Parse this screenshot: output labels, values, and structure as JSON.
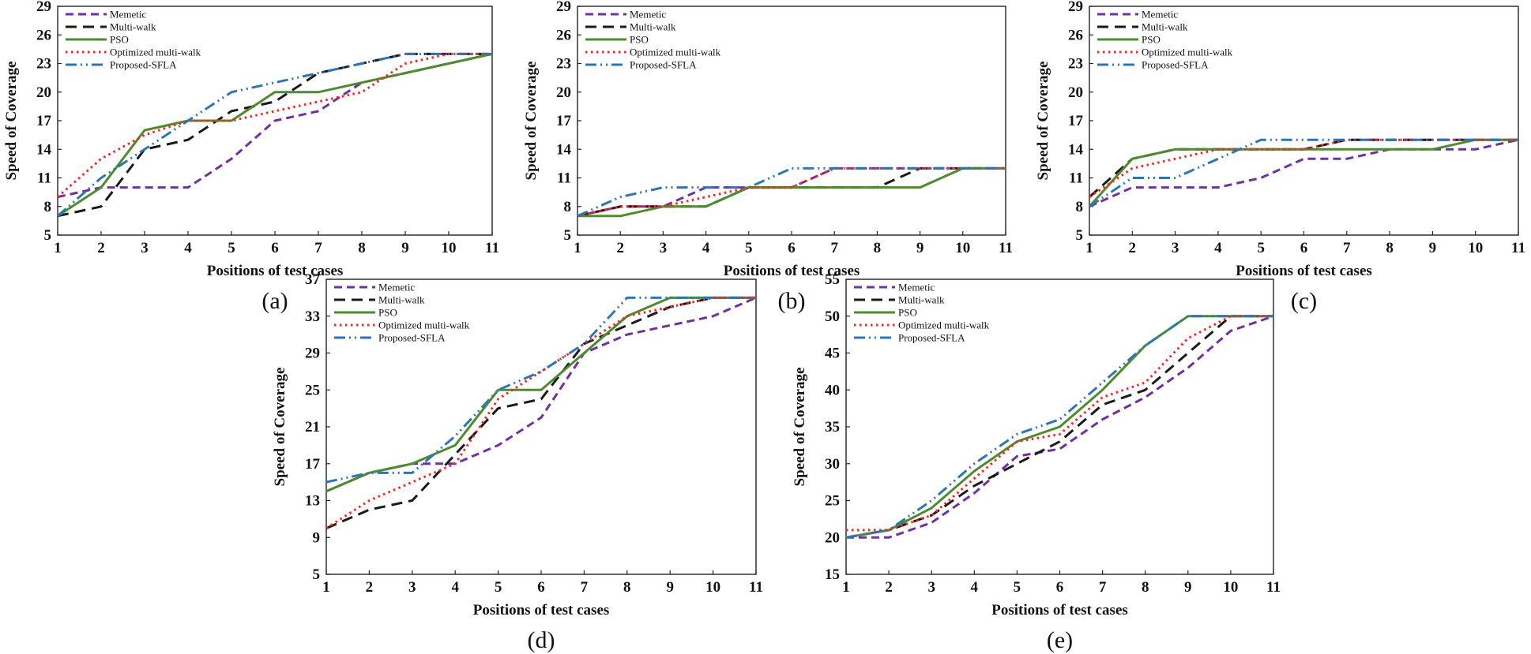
{
  "figure": {
    "series_styles": [
      {
        "name": "Memetic",
        "color": "#7030a0",
        "dash": "dashed"
      },
      {
        "name": "Multi-walk",
        "color": "#1a1a1a",
        "dash": "long-dash"
      },
      {
        "name": "PSO",
        "color": "#4e8b2c",
        "dash": "solid"
      },
      {
        "name": "Optimized multi-walk",
        "color": "#ff2020",
        "dash": "dotted"
      },
      {
        "name": "Proposed-SFLA",
        "color": "#2e75b6",
        "dash": "dash-dot-dot"
      }
    ]
  },
  "chart_data": [
    {
      "panel": "(a)",
      "type": "line",
      "xlabel": "Positions of test cases",
      "ylabel": "Speed of Coverage",
      "x": [
        1,
        2,
        3,
        4,
        5,
        6,
        7,
        8,
        9,
        10,
        11
      ],
      "xticks": [
        "1",
        "2",
        "3",
        "4",
        "5",
        "6",
        "7",
        "8",
        "9",
        "10",
        "11"
      ],
      "yticks": [
        "5",
        "8",
        "11",
        "14",
        "17",
        "20",
        "23",
        "26",
        "29"
      ],
      "ylim": [
        5,
        29
      ],
      "legend_position": "top-left",
      "series": [
        {
          "name": "Memetic",
          "values": [
            9,
            10,
            10,
            10,
            13,
            17,
            18,
            21,
            22,
            23,
            24
          ]
        },
        {
          "name": "Multi-walk",
          "values": [
            7,
            8,
            14,
            15,
            18,
            19,
            22,
            23,
            24,
            24,
            24
          ]
        },
        {
          "name": "PSO",
          "values": [
            7,
            10,
            16,
            17,
            17,
            20,
            20,
            21,
            22,
            23,
            24
          ]
        },
        {
          "name": "Optimized multi-walk",
          "values": [
            9,
            13,
            15.5,
            17,
            17,
            18,
            19,
            20,
            23,
            24,
            24
          ]
        },
        {
          "name": "Proposed-SFLA",
          "values": [
            7,
            11,
            14,
            17,
            20,
            21,
            22,
            23,
            24,
            24,
            24
          ]
        }
      ]
    },
    {
      "panel": "(b)",
      "type": "line",
      "xlabel": "Positions of test cases",
      "ylabel": "Speed of Coverage",
      "x": [
        1,
        2,
        3,
        4,
        5,
        6,
        7,
        8,
        9,
        10,
        11
      ],
      "xticks": [
        "1",
        "2",
        "3",
        "4",
        "5",
        "6",
        "7",
        "8",
        "9",
        "10",
        "11"
      ],
      "yticks": [
        "5",
        "8",
        "11",
        "14",
        "17",
        "20",
        "23",
        "26",
        "29"
      ],
      "ylim": [
        5,
        29
      ],
      "legend_position": "top-left",
      "series": [
        {
          "name": "Memetic",
          "values": [
            7,
            8,
            8,
            10,
            10,
            10,
            12,
            12,
            12,
            12,
            12
          ]
        },
        {
          "name": "Multi-walk",
          "values": [
            7,
            8,
            8,
            8,
            10,
            10,
            10,
            10,
            12,
            12,
            12
          ]
        },
        {
          "name": "PSO",
          "values": [
            7,
            7,
            8,
            8,
            10,
            10,
            10,
            10,
            10,
            12,
            12
          ]
        },
        {
          "name": "Optimized multi-walk",
          "values": [
            7,
            8,
            8,
            9,
            10,
            10,
            12,
            12,
            12,
            12,
            12
          ]
        },
        {
          "name": "Proposed-SFLA",
          "values": [
            7,
            9,
            10,
            10,
            10,
            12,
            12,
            12,
            12,
            12,
            12
          ]
        }
      ]
    },
    {
      "panel": "(c)",
      "type": "line",
      "xlabel": "Positions of test cases",
      "ylabel": "Speed of Coverage",
      "x": [
        1,
        2,
        3,
        4,
        5,
        6,
        7,
        8,
        9,
        10,
        11
      ],
      "xticks": [
        "1",
        "2",
        "3",
        "4",
        "5",
        "6",
        "7",
        "8",
        "9",
        "10",
        "11"
      ],
      "yticks": [
        "5",
        "8",
        "11",
        "14",
        "17",
        "20",
        "23",
        "26",
        "29"
      ],
      "ylim": [
        5,
        29
      ],
      "legend_position": "top-left",
      "series": [
        {
          "name": "Memetic",
          "values": [
            8,
            10,
            10,
            10,
            11,
            13,
            13,
            14,
            14,
            14,
            15
          ]
        },
        {
          "name": "Multi-walk",
          "values": [
            9,
            13,
            14,
            14,
            14,
            14,
            15,
            15,
            15,
            15,
            15
          ]
        },
        {
          "name": "PSO",
          "values": [
            8,
            13,
            14,
            14,
            14,
            14,
            14,
            14,
            14,
            15,
            15
          ]
        },
        {
          "name": "Optimized multi-walk",
          "values": [
            9,
            12,
            13,
            14,
            14,
            14,
            15,
            15,
            15,
            15,
            15
          ]
        },
        {
          "name": "Proposed-SFLA",
          "values": [
            8,
            11,
            11,
            13,
            15,
            15,
            15,
            15,
            15,
            15,
            15
          ]
        }
      ]
    },
    {
      "panel": "(d)",
      "type": "line",
      "xlabel": "Positions of test cases",
      "ylabel": "Speed of Coverage",
      "x": [
        1,
        2,
        3,
        4,
        5,
        6,
        7,
        8,
        9,
        10,
        11
      ],
      "xticks": [
        "1",
        "2",
        "3",
        "4",
        "5",
        "6",
        "7",
        "8",
        "9",
        "10",
        "11"
      ],
      "yticks": [
        "5",
        "9",
        "13",
        "17",
        "21",
        "25",
        "29",
        "33",
        "37"
      ],
      "ylim": [
        5,
        37
      ],
      "legend_position": "top-left",
      "series": [
        {
          "name": "Memetic",
          "values": [
            14,
            16,
            17,
            17,
            19,
            22,
            29,
            31,
            32,
            33,
            35
          ]
        },
        {
          "name": "Multi-walk",
          "values": [
            10,
            12,
            13,
            18,
            23,
            24,
            30,
            32,
            34,
            35,
            35
          ]
        },
        {
          "name": "PSO",
          "values": [
            14,
            16,
            17,
            19,
            25,
            25,
            29,
            33,
            35,
            35,
            35
          ]
        },
        {
          "name": "Optimized multi-walk",
          "values": [
            10,
            13,
            15,
            17,
            24,
            27,
            30,
            33,
            34,
            35,
            35
          ]
        },
        {
          "name": "Proposed-SFLA",
          "values": [
            15,
            16,
            16,
            20,
            25,
            27,
            30,
            35,
            35,
            35,
            35
          ]
        }
      ]
    },
    {
      "panel": "(e)",
      "type": "line",
      "xlabel": "Positions of test cases",
      "ylabel": "Speed of Coverage",
      "x": [
        1,
        2,
        3,
        4,
        5,
        6,
        7,
        8,
        9,
        10,
        11
      ],
      "xticks": [
        "1",
        "2",
        "3",
        "4",
        "5",
        "6",
        "7",
        "8",
        "9",
        "10",
        "11"
      ],
      "yticks": [
        "15",
        "20",
        "25",
        "30",
        "35",
        "40",
        "45",
        "50",
        "55"
      ],
      "ylim": [
        15,
        55
      ],
      "legend_position": "top-left",
      "series": [
        {
          "name": "Memetic",
          "values": [
            20,
            20,
            22,
            26,
            31,
            32,
            36,
            39,
            43,
            48,
            50
          ]
        },
        {
          "name": "Multi-walk",
          "values": [
            20,
            21,
            23,
            27,
            30,
            33,
            38,
            40,
            45,
            50,
            50
          ]
        },
        {
          "name": "PSO",
          "values": [
            20,
            21,
            24,
            29,
            33,
            35,
            40,
            46,
            50,
            50,
            50
          ]
        },
        {
          "name": "Optimized multi-walk",
          "values": [
            21,
            21,
            23,
            28,
            33,
            34,
            39,
            41,
            47,
            50,
            50
          ]
        },
        {
          "name": "Proposed-SFLA",
          "values": [
            20,
            21,
            25,
            30,
            34,
            36,
            41,
            46,
            50,
            50,
            50
          ]
        }
      ]
    }
  ]
}
